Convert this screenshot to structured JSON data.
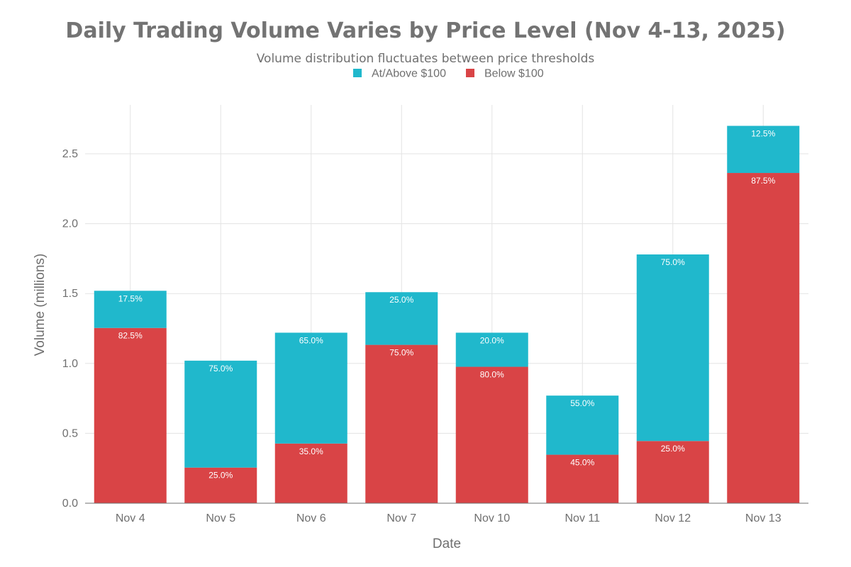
{
  "chart_data": {
    "type": "bar",
    "stacked": true,
    "title": "Daily Trading Volume Varies by Price Level (Nov 4-13, 2025)",
    "subtitle": "Volume distribution fluctuates between price thresholds",
    "xlabel": "Date",
    "ylabel": "Volume (millions)",
    "ylim": [
      0,
      2.85
    ],
    "yticks": [
      "0.0",
      "0.5",
      "1.0",
      "1.5",
      "2.0",
      "2.5"
    ],
    "ytick_values": [
      0,
      0.5,
      1.0,
      1.5,
      2.0,
      2.5
    ],
    "grid": true,
    "legend_position": "top-center",
    "categories": [
      "Nov 4",
      "Nov 5",
      "Nov 6",
      "Nov 7",
      "Nov 10",
      "Nov 11",
      "Nov 12",
      "Nov 13"
    ],
    "series": [
      {
        "name": "Below $100",
        "color": "#d94446",
        "values": [
          1.254,
          0.255,
          0.427,
          1.133,
          0.976,
          0.347,
          0.445,
          2.363
        ],
        "labels": [
          "82.5%",
          "25.0%",
          "35.0%",
          "75.0%",
          "80.0%",
          "45.0%",
          "25.0%",
          "87.5%"
        ]
      },
      {
        "name": "At/Above $100",
        "color": "#20b8cc",
        "values": [
          0.266,
          0.765,
          0.793,
          0.377,
          0.244,
          0.423,
          1.335,
          0.337
        ],
        "labels": [
          "17.5%",
          "75.0%",
          "65.0%",
          "25.0%",
          "20.0%",
          "55.0%",
          "75.0%",
          "12.5%"
        ]
      }
    ],
    "legend_order": [
      "At/Above $100",
      "Below $100"
    ]
  }
}
